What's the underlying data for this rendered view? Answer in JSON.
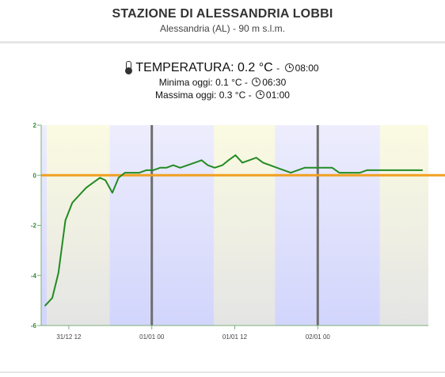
{
  "station": {
    "title": "STAZIONE DI ALESSANDRIA LOBBI",
    "subtitle": "Alessandria (AL) - 90 m s.l.m."
  },
  "temperature": {
    "label": "TEMPERATURA:",
    "value": "0.2 °C",
    "separator": "-",
    "time": "08:00",
    "thermometer_icon": "thermometer-icon",
    "clock_icon": "clock-icon"
  },
  "min_today": {
    "label": "Minima oggi:",
    "value": "0.1 °C",
    "separator": "-",
    "time": "06:30"
  },
  "max_today": {
    "label": "Massima oggi:",
    "value": "0.3 °C",
    "separator": "-",
    "time": "01:00"
  },
  "chart_data": {
    "type": "line",
    "title": "",
    "xlabel": "",
    "ylabel": "",
    "x_unit": "hours",
    "xlim": [
      0,
      56
    ],
    "ylim": [
      -6,
      2
    ],
    "y_ticks": [
      2,
      0,
      -2,
      -4,
      -6
    ],
    "y_tick_labels": [
      "2",
      "0",
      "-2",
      "-4",
      "-6"
    ],
    "x_ticks": [
      {
        "x": 4,
        "label": "31/12 12"
      },
      {
        "x": 16,
        "label": "01/01 00"
      },
      {
        "x": 28,
        "label": "01/01 12"
      },
      {
        "x": 40,
        "label": "02/01 00"
      }
    ],
    "day_separators": [
      16,
      40
    ],
    "reference_line": 0,
    "grid": false,
    "background_bands": [
      {
        "from": 0,
        "to": 0.8,
        "type": "night"
      },
      {
        "from": 0.8,
        "to": 9.9,
        "type": "day"
      },
      {
        "from": 9.9,
        "to": 25,
        "type": "night"
      },
      {
        "from": 25,
        "to": 33.8,
        "type": "day"
      },
      {
        "from": 33.8,
        "to": 49,
        "type": "night"
      },
      {
        "from": 49,
        "to": 56,
        "type": "day"
      }
    ],
    "colors": {
      "line": "#228b22",
      "reference": "#f0a020",
      "separator": "#6e6e6e",
      "axis": "#7ab07a",
      "night": "#d2d5fc",
      "night_light": "#ededfd",
      "day": "#fbfbe2",
      "day_dark": "#e4e4e4"
    },
    "series": [
      {
        "x": [
          0.6,
          1.6,
          2.5,
          3.5,
          4.5,
          5.5,
          6.5,
          7.5,
          8.5,
          9.3,
          10.3,
          11.2,
          12.1,
          13.2,
          14.2,
          15.2,
          16.2,
          17.2,
          18.1,
          19.1,
          20.1,
          22.2,
          23.2,
          24.1,
          25.1,
          26.2,
          27.1,
          28.1,
          29.1,
          30.1,
          31.1,
          32.1,
          33.1,
          34.1,
          36.1,
          37.1,
          38.1,
          39.1,
          40.1,
          41.1,
          42.1,
          43.1,
          44.1,
          45.1,
          46.1,
          47.1,
          48.1,
          49.1,
          50.1,
          51.1,
          52.1,
          53.1,
          54.1,
          55.1
        ],
        "y": [
          -5.2,
          -4.9,
          -3.9,
          -1.8,
          -1.1,
          -0.8,
          -0.5,
          -0.3,
          -0.1,
          -0.2,
          -0.7,
          -0.1,
          0.1,
          0.1,
          0.1,
          0.2,
          0.2,
          0.3,
          0.3,
          0.4,
          0.3,
          0.5,
          0.6,
          0.4,
          0.3,
          0.4,
          0.6,
          0.8,
          0.5,
          0.6,
          0.7,
          0.5,
          0.4,
          0.3,
          0.1,
          0.2,
          0.3,
          0.3,
          0.3,
          0.3,
          0.3,
          0.1,
          0.1,
          0.1,
          0.1,
          0.2,
          0.2,
          0.2,
          0.2,
          0.2,
          0.2,
          0.2,
          0.2,
          0.2
        ]
      }
    ]
  }
}
